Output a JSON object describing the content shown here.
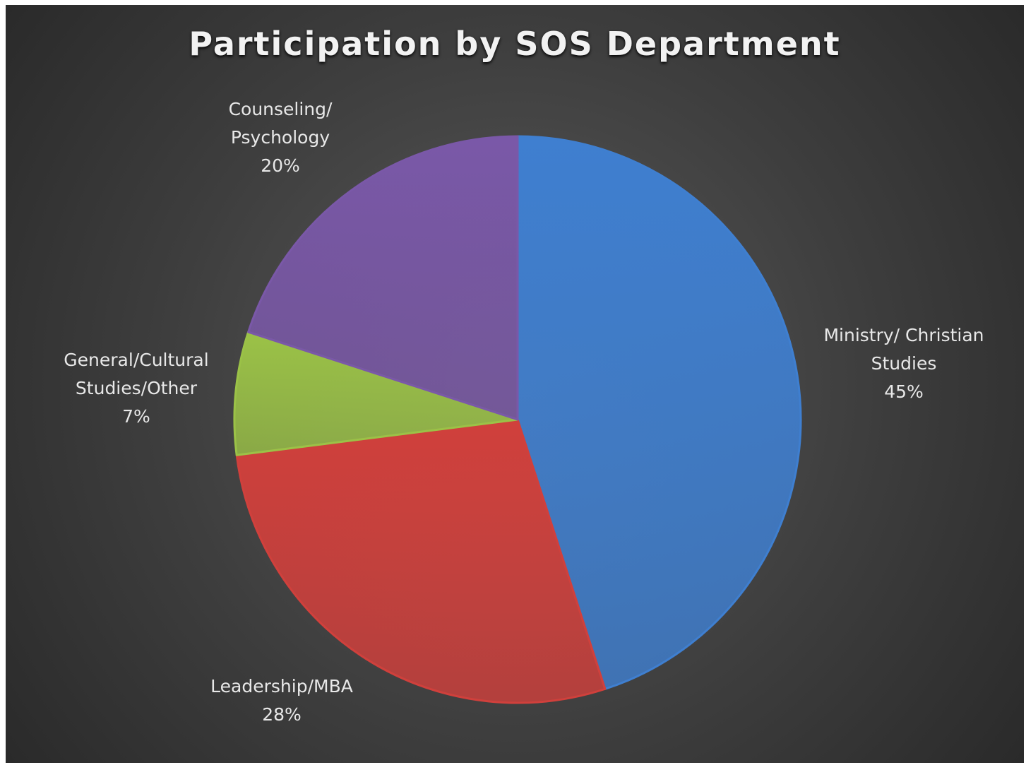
{
  "chart_data": {
    "type": "pie",
    "title": "Participation by SOS Department",
    "categories": [
      "Ministry/ Christian Studies",
      "Leadership/MBA",
      "General/Cultural Studies/Other",
      "Counseling/ Psychology"
    ],
    "values": [
      45,
      28,
      7,
      20
    ],
    "value_labels": [
      "45%",
      "28%",
      "7%",
      "20%"
    ],
    "colors": [
      "#3f7fd0",
      "#d0403c",
      "#9bc247",
      "#7a58a8"
    ]
  }
}
